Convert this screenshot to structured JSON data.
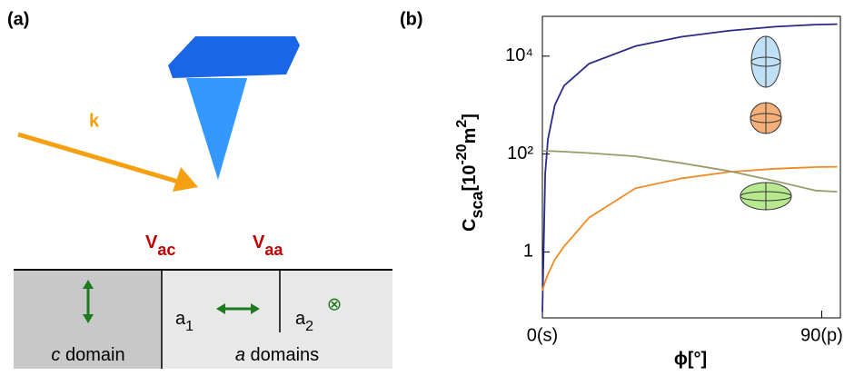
{
  "panels": [
    "(a)",
    "(b)"
  ],
  "diagram": {
    "k": "k",
    "vac": [
      "V",
      "ac"
    ],
    "vaa": [
      "V",
      "aa"
    ],
    "c_domain": [
      "c",
      " domain"
    ],
    "a_domains": [
      "a",
      " domains"
    ],
    "a1": [
      "a",
      "1"
    ],
    "a2": [
      "a",
      "2"
    ],
    "a2_symbol": "⊗"
  },
  "chart_data": {
    "type": "line",
    "xlabel": "ϕ[°]",
    "ylabel": [
      "C",
      "sca",
      "[10",
      "-20",
      "m",
      "2",
      "]"
    ],
    "x": [
      0,
      0.9,
      1.8,
      4,
      7,
      15,
      30,
      45,
      60,
      75,
      88,
      95
    ],
    "series": [
      {
        "color": "#2a2a8a",
        "values": [
          0.06,
          40,
          200,
          1000,
          2500,
          7000,
          16000,
          25000,
          33000,
          40000,
          44000,
          45000
        ]
      },
      {
        "color": "#f08a24",
        "values": [
          0.16,
          0.25,
          0.35,
          0.7,
          1.3,
          5,
          20,
          32,
          43,
          50,
          54,
          55
        ]
      },
      {
        "color": "#9a9a6a",
        "values": [
          115,
          115,
          115,
          114,
          112,
          105,
          90,
          65,
          45,
          28,
          18,
          17
        ]
      }
    ],
    "xlim": [
      0,
      96
    ],
    "xticks": [
      {
        "value": 0,
        "label": "0(s)"
      },
      {
        "value": 90,
        "label": "90(p)"
      }
    ],
    "ylog": true,
    "ylim": [
      0.045,
      65000
    ],
    "yticks": [
      1,
      {
        "value": 100,
        "label": "10²"
      },
      {
        "value": 10000,
        "label": "10⁴"
      }
    ]
  }
}
